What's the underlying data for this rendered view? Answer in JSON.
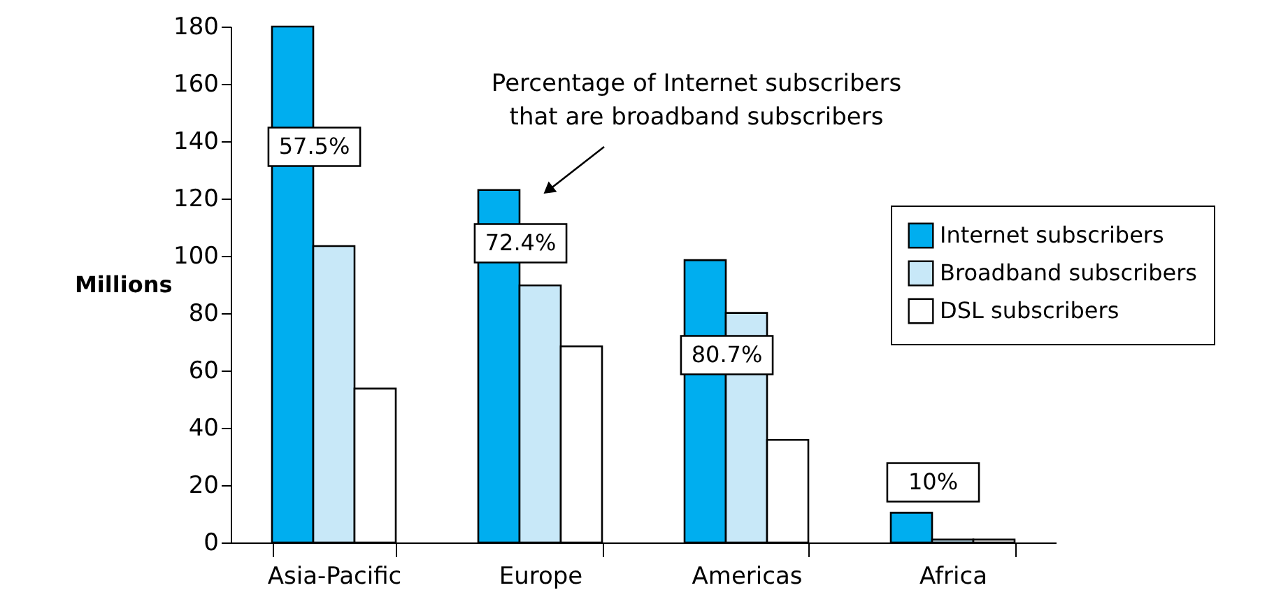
{
  "chart_data": {
    "type": "bar",
    "ylabel": "Millions",
    "categories": [
      "Asia-Pacific",
      "Europe",
      "Americas",
      "Africa"
    ],
    "series": [
      {
        "name": "Internet subscribers",
        "color": "#00aeef",
        "values": [
          180,
          123,
          98.5,
          10.4
        ]
      },
      {
        "name": "Broadband subscribers",
        "color": "#c8e8f8",
        "values": [
          103.4,
          89.7,
          80.1,
          1
        ]
      },
      {
        "name": "DSL subscribers",
        "color": "#ffffff",
        "values": [
          53.7,
          68.4,
          35.8,
          1
        ]
      }
    ],
    "ylim": [
      0,
      180
    ],
    "yticks": [
      0,
      20,
      40,
      60,
      80,
      100,
      120,
      140,
      160,
      180
    ],
    "grid": false,
    "legend": "right",
    "annotations": [
      "57.5%",
      "72.4%",
      "80.7%",
      "10%",
      "Percentage of Internet subscribers\nthat are broadband subscribers"
    ]
  }
}
